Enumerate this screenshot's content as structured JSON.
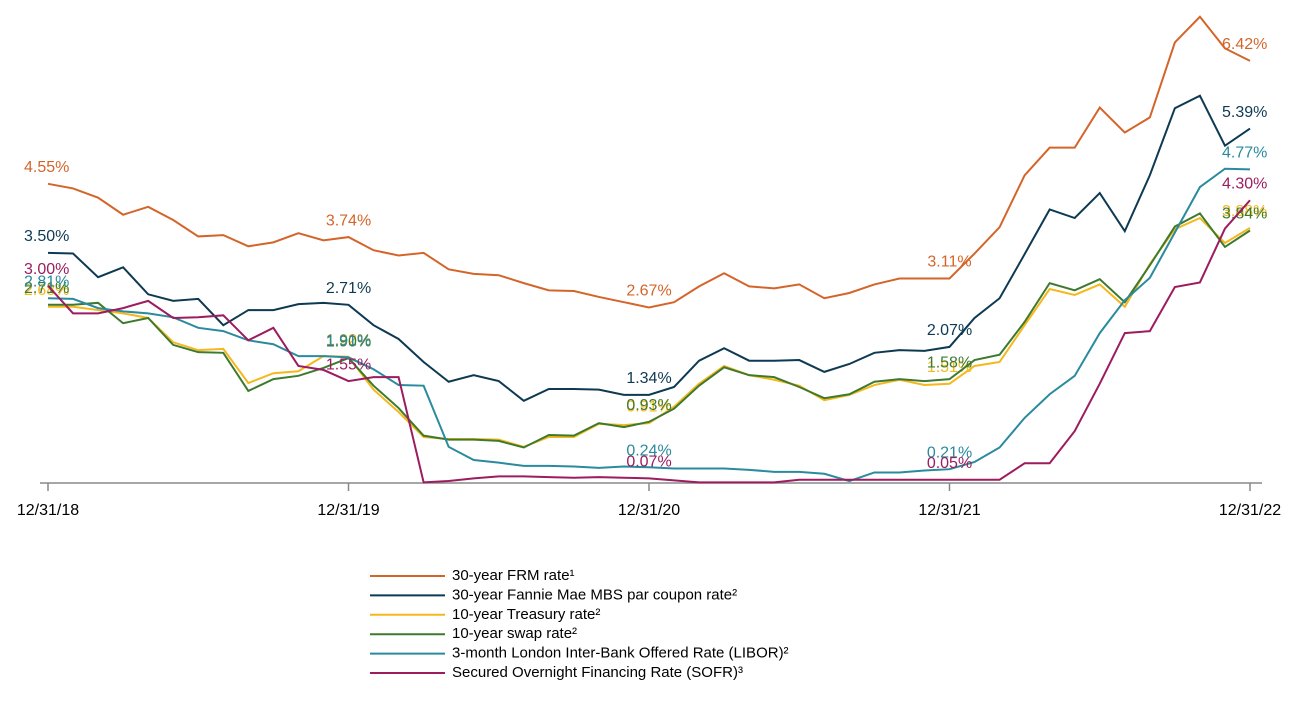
{
  "chart_data": {
    "type": "line",
    "categories": [
      "12/31/18",
      null,
      null,
      null,
      null,
      null,
      null,
      null,
      null,
      null,
      null,
      null,
      "12/31/19",
      null,
      null,
      null,
      null,
      null,
      null,
      null,
      null,
      null,
      null,
      null,
      "12/31/20",
      null,
      null,
      null,
      null,
      null,
      null,
      null,
      null,
      null,
      null,
      null,
      "12/31/21",
      null,
      null,
      null,
      null,
      null,
      null,
      null,
      null,
      null,
      null,
      null,
      "12/31/22"
    ],
    "ylim": [
      0,
      7.3
    ],
    "series": [
      {
        "name": "30-year FRM rate¹",
        "color": "#d4652a",
        "values": [
          4.55,
          4.48,
          4.34,
          4.08,
          4.2,
          4.0,
          3.75,
          3.77,
          3.6,
          3.66,
          3.8,
          3.69,
          3.74,
          3.54,
          3.46,
          3.5,
          3.25,
          3.18,
          3.16,
          3.04,
          2.93,
          2.92,
          2.83,
          2.75,
          2.67,
          2.75,
          2.99,
          3.19,
          2.99,
          2.96,
          3.02,
          2.81,
          2.89,
          3.02,
          3.11,
          3.11,
          3.11,
          3.49,
          3.89,
          4.68,
          5.1,
          5.1,
          5.71,
          5.33,
          5.56,
          6.7,
          7.09,
          6.61,
          6.42
        ],
        "value_labels": [
          "4.55%",
          null,
          null,
          null,
          null,
          null,
          null,
          null,
          null,
          null,
          null,
          null,
          "3.74%",
          null,
          null,
          null,
          null,
          null,
          null,
          null,
          null,
          null,
          null,
          null,
          "2.67%",
          null,
          null,
          null,
          null,
          null,
          null,
          null,
          null,
          null,
          null,
          null,
          "3.11%",
          null,
          null,
          null,
          null,
          null,
          null,
          null,
          null,
          null,
          null,
          null,
          "6.42%"
        ]
      },
      {
        "name": "30-year Fannie Mae MBS par coupon rate²",
        "color": "#0d3a52",
        "values": [
          3.5,
          3.49,
          3.13,
          3.28,
          2.87,
          2.77,
          2.8,
          2.4,
          2.63,
          2.63,
          2.72,
          2.74,
          2.71,
          2.4,
          2.19,
          1.84,
          1.54,
          1.64,
          1.55,
          1.25,
          1.43,
          1.43,
          1.42,
          1.34,
          1.34,
          1.46,
          1.86,
          2.05,
          1.86,
          1.86,
          1.87,
          1.69,
          1.81,
          1.98,
          2.02,
          2.01,
          2.07,
          2.51,
          2.81,
          3.48,
          4.16,
          4.03,
          4.41,
          3.83,
          4.68,
          5.7,
          5.89,
          5.13,
          5.39
        ],
        "value_labels": [
          "3.50%",
          null,
          null,
          null,
          null,
          null,
          null,
          null,
          null,
          null,
          null,
          null,
          "2.71%",
          null,
          null,
          null,
          null,
          null,
          null,
          null,
          null,
          null,
          null,
          null,
          "1.34%",
          null,
          null,
          null,
          null,
          null,
          null,
          null,
          null,
          null,
          null,
          null,
          "2.07%",
          null,
          null,
          null,
          null,
          null,
          null,
          null,
          null,
          null,
          null,
          null,
          "5.39%"
        ]
      },
      {
        "name": "10-year Treasury rate²",
        "color": "#f5b81c",
        "values": [
          2.68,
          2.68,
          2.63,
          2.58,
          2.51,
          2.14,
          2.02,
          2.04,
          1.52,
          1.67,
          1.7,
          1.93,
          1.92,
          1.42,
          1.08,
          0.7,
          0.67,
          0.67,
          0.66,
          0.55,
          0.7,
          0.7,
          0.9,
          0.88,
          0.91,
          1.16,
          1.51,
          1.78,
          1.64,
          1.57,
          1.48,
          1.26,
          1.34,
          1.49,
          1.57,
          1.49,
          1.51,
          1.78,
          1.84,
          2.4,
          2.95,
          2.86,
          3.02,
          2.68,
          3.33,
          3.86,
          4.03,
          3.65,
          3.88
        ],
        "value_labels": [
          "2.68%",
          null,
          null,
          null,
          null,
          null,
          null,
          null,
          null,
          null,
          null,
          null,
          "1.92%",
          null,
          null,
          null,
          null,
          null,
          null,
          null,
          null,
          null,
          null,
          null,
          "0.91%",
          null,
          null,
          null,
          null,
          null,
          null,
          null,
          null,
          null,
          null,
          null,
          "1.51%",
          null,
          null,
          null,
          null,
          null,
          null,
          null,
          null,
          null,
          null,
          null,
          "3.88%"
        ]
      },
      {
        "name": "10-year swap rate²",
        "color": "#3d7a2e",
        "values": [
          2.71,
          2.71,
          2.74,
          2.43,
          2.51,
          2.1,
          1.99,
          1.98,
          1.4,
          1.58,
          1.63,
          1.75,
          1.9,
          1.48,
          1.14,
          0.72,
          0.66,
          0.66,
          0.64,
          0.54,
          0.73,
          0.72,
          0.91,
          0.85,
          0.93,
          1.13,
          1.48,
          1.76,
          1.64,
          1.61,
          1.46,
          1.29,
          1.35,
          1.54,
          1.58,
          1.55,
          1.58,
          1.87,
          1.95,
          2.45,
          3.04,
          2.93,
          3.1,
          2.75,
          3.31,
          3.9,
          4.1,
          3.59,
          3.84
        ],
        "value_labels": [
          "2.71%",
          null,
          null,
          null,
          null,
          null,
          null,
          null,
          null,
          null,
          null,
          null,
          "1.90%",
          null,
          null,
          null,
          null,
          null,
          null,
          null,
          null,
          null,
          null,
          null,
          "0.93%",
          null,
          null,
          null,
          null,
          null,
          null,
          null,
          null,
          null,
          null,
          null,
          "1.58%",
          null,
          null,
          null,
          null,
          null,
          null,
          null,
          null,
          null,
          null,
          null,
          "3.84%"
        ]
      },
      {
        "name": "3-month London Inter-Bank Offered Rate (LIBOR)²",
        "color": "#2a8a9e",
        "values": [
          2.81,
          2.8,
          2.66,
          2.61,
          2.58,
          2.52,
          2.36,
          2.31,
          2.17,
          2.11,
          1.93,
          1.93,
          1.91,
          1.73,
          1.49,
          1.48,
          0.55,
          0.35,
          0.31,
          0.26,
          0.26,
          0.25,
          0.23,
          0.25,
          0.24,
          0.22,
          0.22,
          0.22,
          0.2,
          0.17,
          0.17,
          0.14,
          0.03,
          0.16,
          0.16,
          0.19,
          0.21,
          0.32,
          0.54,
          0.99,
          1.35,
          1.63,
          2.28,
          2.78,
          3.12,
          3.81,
          4.5,
          4.78,
          4.77
        ],
        "value_labels": [
          "2.81%",
          null,
          null,
          null,
          null,
          null,
          null,
          null,
          null,
          null,
          null,
          null,
          "1.91%",
          null,
          null,
          null,
          null,
          null,
          null,
          null,
          null,
          null,
          null,
          null,
          "0.24%",
          null,
          null,
          null,
          null,
          null,
          null,
          null,
          null,
          null,
          null,
          null,
          "0.21%",
          null,
          null,
          null,
          null,
          null,
          null,
          null,
          null,
          null,
          null,
          null,
          "4.77%"
        ]
      },
      {
        "name": "Secured Overnight Financing Rate (SOFR)³",
        "color": "#9c1c5f",
        "values": [
          3.0,
          2.58,
          2.58,
          2.66,
          2.77,
          2.51,
          2.52,
          2.55,
          2.17,
          2.36,
          1.78,
          1.72,
          1.55,
          1.61,
          1.61,
          0.01,
          0.03,
          0.07,
          0.1,
          0.1,
          0.09,
          0.08,
          0.09,
          0.08,
          0.07,
          0.04,
          0.01,
          0.01,
          0.01,
          0.01,
          0.05,
          0.05,
          0.05,
          0.05,
          0.05,
          0.05,
          0.05,
          0.05,
          0.05,
          0.3,
          0.3,
          0.79,
          1.51,
          2.28,
          2.31,
          2.98,
          3.05,
          3.87,
          4.3
        ],
        "value_labels": [
          "3.00%",
          null,
          null,
          null,
          null,
          null,
          null,
          null,
          null,
          null,
          null,
          null,
          "1.55%",
          null,
          null,
          null,
          null,
          null,
          null,
          null,
          null,
          null,
          null,
          null,
          "0.07%",
          null,
          null,
          null,
          null,
          null,
          null,
          null,
          null,
          null,
          null,
          null,
          "0.05%",
          null,
          null,
          null,
          null,
          null,
          null,
          null,
          null,
          null,
          null,
          null,
          "4.30%"
        ]
      }
    ]
  }
}
